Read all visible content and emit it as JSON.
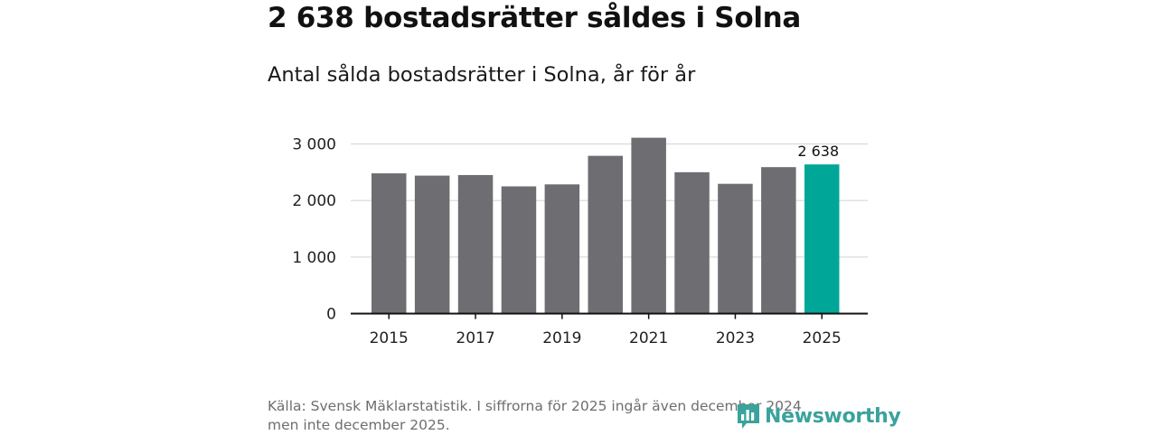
{
  "chart_data": {
    "type": "bar",
    "title": "2 638 bostadsrätter såldes i Solna",
    "subtitle": "Antal sålda bostadsrätter i Solna, år för år",
    "categories": [
      "2015",
      "2016",
      "2017",
      "2018",
      "2019",
      "2020",
      "2021",
      "2022",
      "2023",
      "2024",
      "2025"
    ],
    "values": [
      2480,
      2440,
      2450,
      2250,
      2285,
      2790,
      3110,
      2500,
      2295,
      2590,
      2638
    ],
    "highlight_index": 10,
    "data_labels": [
      {
        "index": 10,
        "text": "2 638"
      }
    ],
    "x_tick_labels": [
      "2015",
      "2017",
      "2019",
      "2021",
      "2023",
      "2025"
    ],
    "y_ticks": [
      0,
      1000,
      2000,
      3000
    ],
    "y_tick_labels": [
      "0",
      "1 000",
      "2 000",
      "3 000"
    ],
    "ylim": [
      0,
      3000
    ],
    "xlabel": "",
    "ylabel": "",
    "grid": true,
    "colors": {
      "bar": "#6d6d72",
      "highlight": "#00a698",
      "grid": "#d9d9d9",
      "axis": "#111111"
    }
  },
  "source_line1": "Källa: Svensk Mäklarstatistik. I siffrorna för 2025 ingår även december 2024",
  "source_line2": "men inte december 2025.",
  "logo_text": "Newsworthy",
  "logo_icon": "bar-chart-speech-bubble-icon"
}
